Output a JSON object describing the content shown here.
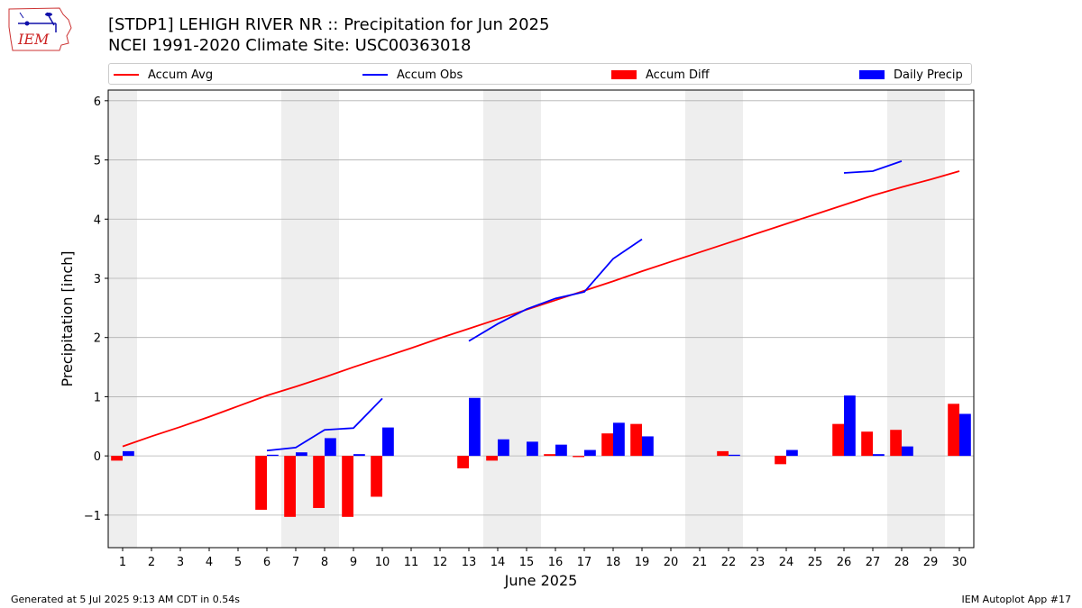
{
  "logo": {
    "text": "IEM"
  },
  "header": {
    "title_line1": "[STDP1] LEHIGH RIVER NR :: Precipitation for Jun 2025",
    "title_line2": "NCEI 1991-2020 Climate Site: USC00363018"
  },
  "legend": {
    "items": [
      {
        "label": "Accum Avg",
        "kind": "line",
        "color": "#ff0000"
      },
      {
        "label": "Accum Obs",
        "kind": "line",
        "color": "#0000ff"
      },
      {
        "label": "Accum Diff",
        "kind": "bar",
        "color": "#ff0000"
      },
      {
        "label": "Daily Precip",
        "kind": "bar",
        "color": "#0000ff"
      }
    ]
  },
  "footer": {
    "left": "Generated at 5 Jul 2025 9:13 AM CDT in 0.54s",
    "right": "IEM Autoplot App #17"
  },
  "chart_data": {
    "type": "bar",
    "xlabel": "June 2025",
    "ylabel": "Precipitation [inch]",
    "ylim": [
      -1.55,
      6.18
    ],
    "yticks": [
      -1,
      0,
      1,
      2,
      3,
      4,
      5,
      6
    ],
    "ytick_labels": [
      "−1",
      "0",
      "1",
      "2",
      "3",
      "4",
      "5",
      "6"
    ],
    "days": [
      1,
      2,
      3,
      4,
      5,
      6,
      7,
      8,
      9,
      10,
      11,
      12,
      13,
      14,
      15,
      16,
      17,
      18,
      19,
      20,
      21,
      22,
      23,
      24,
      25,
      26,
      27,
      28,
      29,
      30
    ],
    "weekend_days": [
      1,
      7,
      8,
      14,
      15,
      21,
      22,
      28,
      29
    ],
    "grid": "y",
    "colors": {
      "avg": "#ff0000",
      "obs": "#0000ff",
      "diff": "#ff0000",
      "daily": "#0000ff",
      "weekend": "#eeeeee",
      "grid": "#b0b0b0"
    },
    "series": [
      {
        "name": "Accum Avg",
        "kind": "line",
        "values": [
          0.16,
          0.33,
          0.49,
          0.66,
          0.84,
          1.02,
          1.17,
          1.33,
          1.5,
          1.66,
          1.82,
          1.99,
          2.15,
          2.31,
          2.47,
          2.63,
          2.79,
          2.95,
          3.12,
          3.28,
          3.44,
          3.6,
          3.76,
          3.92,
          4.08,
          4.24,
          4.4,
          4.54,
          4.67,
          4.81
        ]
      },
      {
        "name": "Accum Obs",
        "kind": "line",
        "segments": [
          {
            "days": [
              6,
              7,
              8,
              9,
              10
            ],
            "values": [
              0.09,
              0.14,
              0.44,
              0.47,
              0.97
            ]
          },
          {
            "days": [
              13,
              14,
              15,
              16,
              17,
              18,
              19
            ],
            "values": [
              1.94,
              2.23,
              2.48,
              2.66,
              2.77,
              3.33,
              3.66
            ]
          },
          {
            "days": [
              26,
              27,
              28
            ],
            "values": [
              4.78,
              4.81,
              4.98
            ]
          }
        ]
      },
      {
        "name": "Accum Diff",
        "kind": "bar",
        "values": [
          -0.08,
          null,
          null,
          null,
          null,
          -0.91,
          -1.03,
          -0.88,
          -1.03,
          -0.69,
          null,
          null,
          -0.21,
          -0.08,
          null,
          0.03,
          -0.02,
          0.38,
          0.54,
          null,
          null,
          0.08,
          null,
          -0.14,
          null,
          0.54,
          0.41,
          0.44,
          null,
          0.88
        ]
      },
      {
        "name": "Daily Precip",
        "kind": "bar",
        "values": [
          0.08,
          null,
          null,
          null,
          null,
          0.02,
          0.06,
          0.3,
          0.03,
          0.48,
          null,
          null,
          0.98,
          0.28,
          0.24,
          0.19,
          0.1,
          0.56,
          0.33,
          null,
          null,
          0.02,
          null,
          0.1,
          null,
          1.02,
          0.03,
          0.16,
          null,
          0.71
        ]
      }
    ]
  }
}
